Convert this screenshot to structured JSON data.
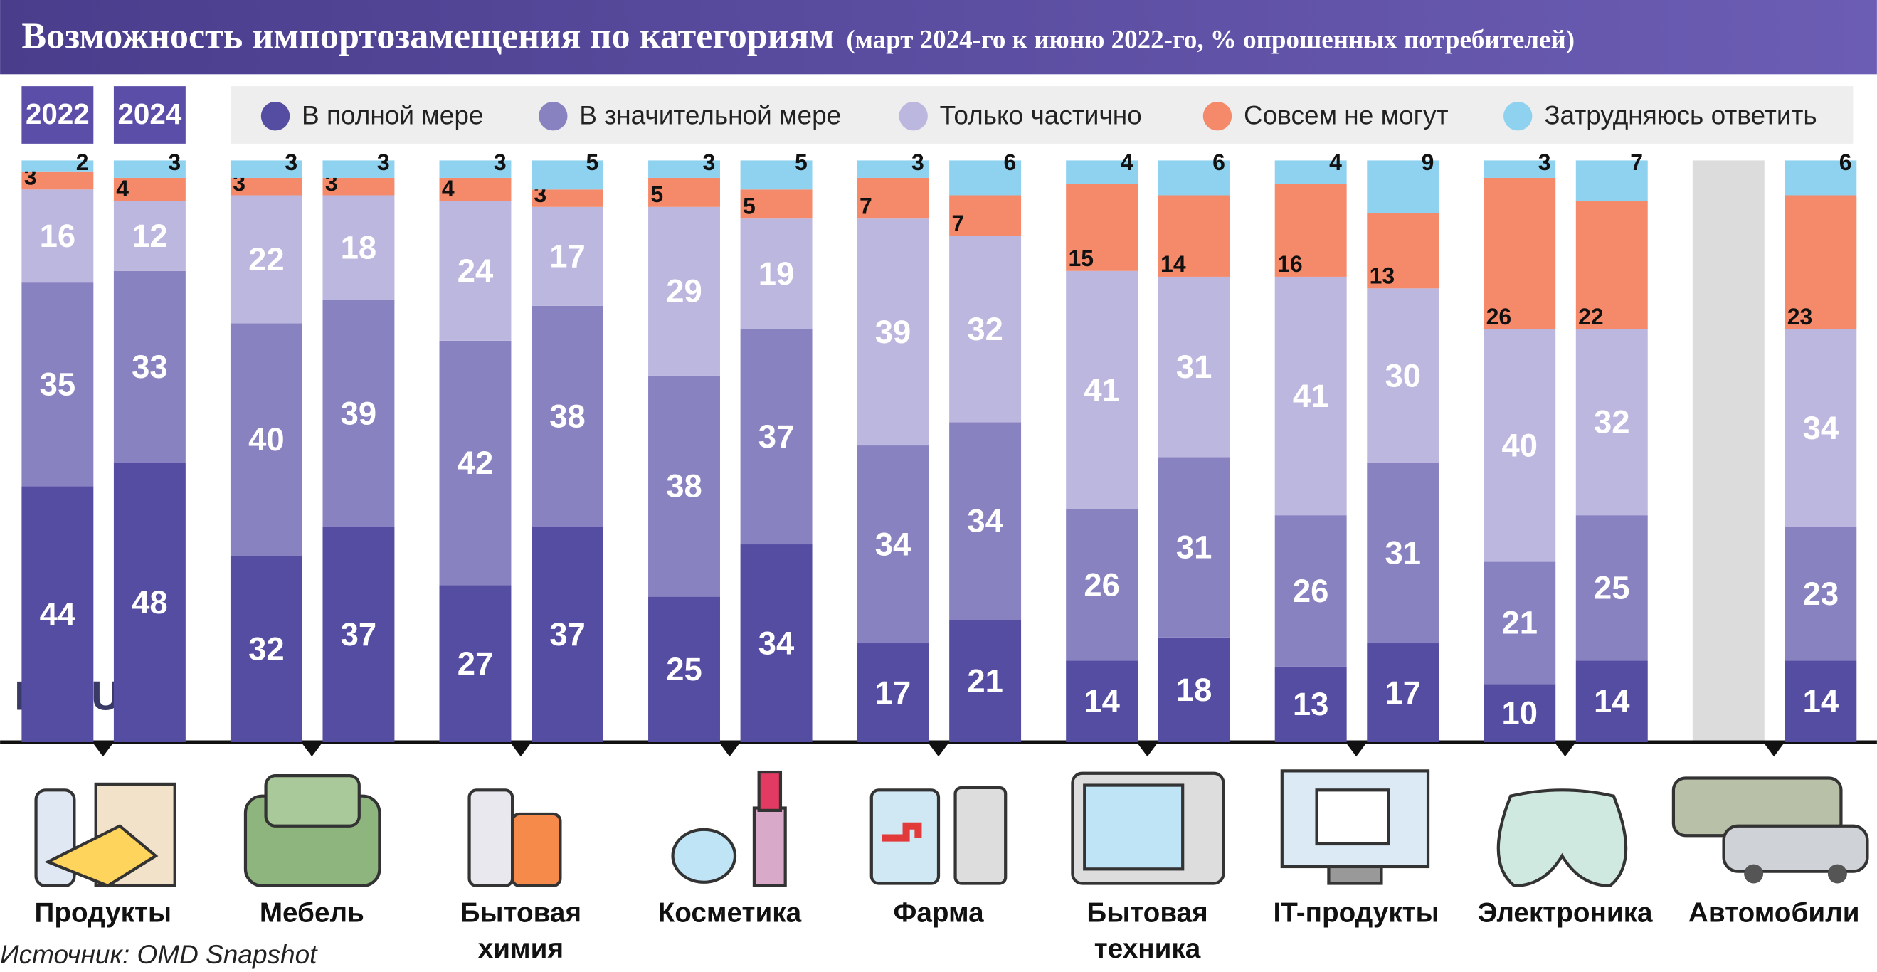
{
  "chart_data": {
    "type": "stacked_bar",
    "title": "Возможность импортозамещения по категориям",
    "subtitle": "(март 2024-го к июню 2022-го, % опрошенных потребителей)",
    "years": [
      "2022",
      "2024"
    ],
    "categories": [
      "Продукты",
      "Мебель",
      "Бытовая химия",
      "Косметика",
      "Фарма",
      "Бытовая техника",
      "IT-продукты",
      "Электроника",
      "Автомобили"
    ],
    "ylim": [
      0,
      100
    ],
    "series": [
      {
        "name": "В полной мере",
        "color": "#554da1",
        "values": [
          [
            44,
            48
          ],
          [
            32,
            37
          ],
          [
            27,
            37
          ],
          [
            25,
            34
          ],
          [
            17,
            21
          ],
          [
            14,
            18
          ],
          [
            13,
            17
          ],
          [
            10,
            14
          ],
          [
            null,
            14
          ]
        ]
      },
      {
        "name": "В значительной мере",
        "color": "#8982c1",
        "values": [
          [
            35,
            33
          ],
          [
            40,
            39
          ],
          [
            42,
            38
          ],
          [
            38,
            37
          ],
          [
            34,
            34
          ],
          [
            26,
            31
          ],
          [
            26,
            31
          ],
          [
            21,
            25
          ],
          [
            null,
            23
          ]
        ]
      },
      {
        "name": "Только частично",
        "color": "#bcb7de",
        "values": [
          [
            16,
            12
          ],
          [
            22,
            18
          ],
          [
            24,
            17
          ],
          [
            29,
            19
          ],
          [
            39,
            32
          ],
          [
            41,
            31
          ],
          [
            41,
            30
          ],
          [
            40,
            32
          ],
          [
            null,
            34
          ]
        ]
      },
      {
        "name": "Совсем не могут",
        "color": "#f58a6b",
        "values": [
          [
            3,
            4
          ],
          [
            3,
            3
          ],
          [
            4,
            3
          ],
          [
            5,
            5
          ],
          [
            7,
            7
          ],
          [
            15,
            14
          ],
          [
            16,
            13
          ],
          [
            26,
            22
          ],
          [
            null,
            23
          ]
        ]
      },
      {
        "name": "Затрудняюсь ответить",
        "color": "#8fd2ef",
        "values": [
          [
            2,
            3
          ],
          [
            3,
            3
          ],
          [
            3,
            5
          ],
          [
            3,
            5
          ],
          [
            3,
            6
          ],
          [
            4,
            6
          ],
          [
            4,
            9
          ],
          [
            3,
            7
          ],
          [
            null,
            6
          ]
        ]
      }
    ],
    "source": "Источник: OMD Snapshot",
    "logo": "IZ.RU"
  }
}
